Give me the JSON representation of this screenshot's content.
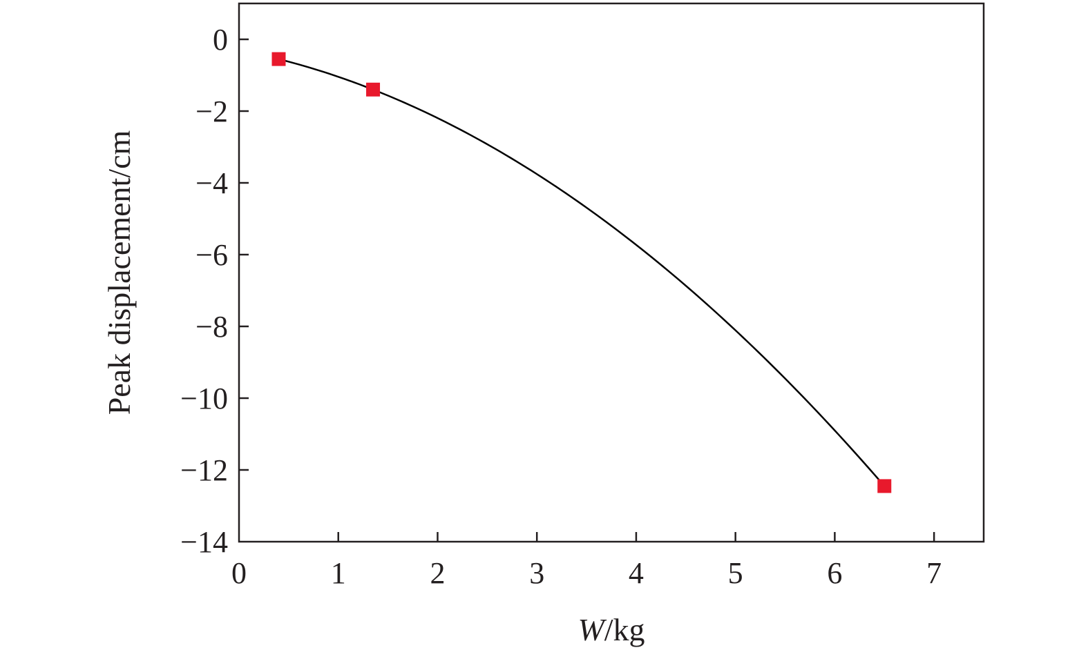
{
  "chart_data": {
    "type": "scatter",
    "title": "",
    "xlabel_italic": "W",
    "xlabel_rest": "/kg",
    "ylabel": "Peak displacement/cm",
    "xlim": [
      0,
      7.5
    ],
    "ylim": [
      -14,
      1
    ],
    "xticks": [
      0,
      1,
      2,
      3,
      4,
      5,
      6,
      7
    ],
    "yticks": [
      0,
      -2,
      -4,
      -6,
      -8,
      -10,
      -12,
      -14
    ],
    "xtick_labels": [
      "0",
      "1",
      "2",
      "3",
      "4",
      "5",
      "6",
      "7"
    ],
    "ytick_labels": [
      "0",
      "−2",
      "−4",
      "−6",
      "−8",
      "−10",
      "−12",
      "−14"
    ],
    "grid": false,
    "series": [
      {
        "marker": "square",
        "color": "#e8192c",
        "points": [
          {
            "x": 0.4,
            "y": -0.55
          },
          {
            "x": 1.35,
            "y": -1.4
          },
          {
            "x": 6.5,
            "y": -12.45
          }
        ]
      }
    ],
    "fit_curve": {
      "color": "#000000",
      "type": "quadratic",
      "x_range": [
        0.4,
        6.5
      ]
    }
  }
}
